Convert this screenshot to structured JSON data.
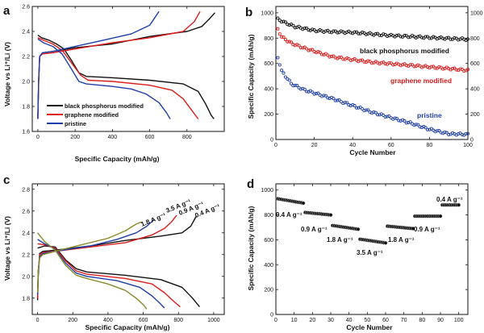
{
  "colors": {
    "black": "#111111",
    "red": "#dd1b1b",
    "blue": "#1f3fa8",
    "olive": "#8a8a2a",
    "axis": "#111111"
  },
  "chart_data": [
    {
      "label": "a",
      "type": "line",
      "xlabel": "Specific Capacity (mAh/g)",
      "ylabel": "Voltage vs Li⁺/Li (V)",
      "xlim": [
        -30,
        1000
      ],
      "ylim": [
        1.6,
        2.6
      ],
      "xticks": [
        "0",
        "200",
        "400",
        "600",
        "800"
      ],
      "xtick_values": [
        0,
        200,
        400,
        600,
        800
      ],
      "yticks": [
        "1.6",
        "1.8",
        "2.0",
        "2.2",
        "2.4",
        "2.6"
      ],
      "ytick_values": [
        1.6,
        1.8,
        2.0,
        2.2,
        2.4,
        2.6
      ],
      "legend": [
        "black phosphorus modified",
        "graphene modified",
        "pristine"
      ],
      "legend_position": "bottom-left",
      "series": [
        {
          "name": "black phosphorus modified",
          "color": "black",
          "discharge": [
            [
              0,
              2.37
            ],
            [
              20,
              2.35
            ],
            [
              60,
              2.33
            ],
            [
              100,
              2.3
            ],
            [
              140,
              2.26
            ],
            [
              180,
              2.17
            ],
            [
              220,
              2.07
            ],
            [
              260,
              2.04
            ],
            [
              400,
              2.03
            ],
            [
              600,
              2.01
            ],
            [
              780,
              1.98
            ],
            [
              860,
              1.92
            ],
            [
              900,
              1.82
            ],
            [
              930,
              1.73
            ],
            [
              945,
              1.7
            ]
          ],
          "charge": [
            [
              0,
              1.7
            ],
            [
              4,
              2.0
            ],
            [
              10,
              2.2
            ],
            [
              25,
              2.23
            ],
            [
              80,
              2.24
            ],
            [
              200,
              2.27
            ],
            [
              400,
              2.3
            ],
            [
              600,
              2.36
            ],
            [
              800,
              2.4
            ],
            [
              880,
              2.44
            ],
            [
              920,
              2.5
            ],
            [
              950,
              2.55
            ]
          ]
        },
        {
          "name": "graphene modified",
          "color": "red",
          "discharge": [
            [
              0,
              2.35
            ],
            [
              30,
              2.33
            ],
            [
              80,
              2.3
            ],
            [
              130,
              2.25
            ],
            [
              180,
              2.15
            ],
            [
              230,
              2.05
            ],
            [
              270,
              2.01
            ],
            [
              400,
              2.0
            ],
            [
              600,
              1.97
            ],
            [
              720,
              1.93
            ],
            [
              780,
              1.86
            ],
            [
              820,
              1.78
            ],
            [
              860,
              1.7
            ]
          ],
          "charge": [
            [
              0,
              1.7
            ],
            [
              4,
              2.0
            ],
            [
              10,
              2.2
            ],
            [
              25,
              2.22
            ],
            [
              80,
              2.23
            ],
            [
              200,
              2.26
            ],
            [
              400,
              2.31
            ],
            [
              600,
              2.35
            ],
            [
              780,
              2.4
            ],
            [
              840,
              2.48
            ],
            [
              870,
              2.56
            ]
          ]
        },
        {
          "name": "pristine",
          "color": "blue",
          "discharge": [
            [
              0,
              2.34
            ],
            [
              30,
              2.31
            ],
            [
              80,
              2.28
            ],
            [
              130,
              2.22
            ],
            [
              180,
              2.1
            ],
            [
              220,
              2.0
            ],
            [
              260,
              1.98
            ],
            [
              400,
              1.96
            ],
            [
              500,
              1.94
            ],
            [
              580,
              1.9
            ],
            [
              650,
              1.83
            ],
            [
              690,
              1.75
            ],
            [
              710,
              1.7
            ]
          ],
          "charge": [
            [
              0,
              1.7
            ],
            [
              4,
              2.0
            ],
            [
              10,
              2.2
            ],
            [
              25,
              2.23
            ],
            [
              80,
              2.24
            ],
            [
              200,
              2.28
            ],
            [
              350,
              2.33
            ],
            [
              500,
              2.38
            ],
            [
              600,
              2.45
            ],
            [
              650,
              2.56
            ]
          ]
        }
      ]
    },
    {
      "label": "b",
      "type": "scatter",
      "xlabel": "Cycle Number",
      "ylabel": "Specific Capacity (mAh/g)",
      "xlim": [
        0,
        100
      ],
      "ylim": [
        0,
        1050
      ],
      "xticks": [
        "0",
        "20",
        "40",
        "60",
        "80",
        "100"
      ],
      "xtick_values": [
        0,
        20,
        40,
        60,
        80,
        100
      ],
      "yticks": [
        "0",
        "200",
        "400",
        "600",
        "800",
        "1000"
      ],
      "ytick_values": [
        0,
        200,
        400,
        600,
        800,
        1000
      ],
      "series": [
        {
          "name": "black phosphorus modified",
          "color": "black",
          "anchors": [
            [
              1,
              950
            ],
            [
              5,
              920
            ],
            [
              10,
              890
            ],
            [
              20,
              860
            ],
            [
              30,
              850
            ],
            [
              40,
              845
            ],
            [
              60,
              820
            ],
            [
              80,
              805
            ],
            [
              100,
              790
            ]
          ]
        },
        {
          "name": "graphene modified",
          "color": "red",
          "anchors": [
            [
              1,
              870
            ],
            [
              3,
              810
            ],
            [
              8,
              760
            ],
            [
              15,
              720
            ],
            [
              30,
              650
            ],
            [
              50,
              610
            ],
            [
              70,
              585
            ],
            [
              90,
              560
            ],
            [
              100,
              545
            ]
          ]
        },
        {
          "name": "pristine",
          "color": "blue",
          "anchors": [
            [
              1,
              650
            ],
            [
              3,
              540
            ],
            [
              8,
              440
            ],
            [
              15,
              390
            ],
            [
              30,
              320
            ],
            [
              50,
              215
            ],
            [
              70,
              130
            ],
            [
              80,
              80
            ],
            [
              90,
              45
            ],
            [
              100,
              40
            ]
          ]
        }
      ],
      "annotations": [
        "black phosphorus modified",
        "graphene modified",
        "pristine"
      ]
    },
    {
      "label": "c",
      "type": "line",
      "xlabel": "Specific Capacity (mAh/g)",
      "ylabel": "Voltage vs Li⁺/Li (V)",
      "xlim": [
        -30,
        1060
      ],
      "ylim": [
        1.65,
        2.85
      ],
      "xticks": [
        "0",
        "200",
        "400",
        "600",
        "800",
        "1000"
      ],
      "xtick_values": [
        0,
        200,
        400,
        600,
        800,
        1000
      ],
      "yticks": [
        "1.8",
        "2.0",
        "2.2",
        "2.4",
        "2.6",
        "2.8"
      ],
      "ytick_values": [
        1.8,
        2.0,
        2.2,
        2.4,
        2.6,
        2.8
      ],
      "rate_labels": [
        "3.5 A g⁻¹",
        "1.8 A g⁻¹",
        "0.9 A g⁻¹",
        "0.4 A g⁻¹"
      ],
      "series": [
        {
          "name": "0.4 A g⁻¹",
          "color": "black",
          "discharge": [
            [
              0,
              2.26
            ],
            [
              40,
              2.28
            ],
            [
              100,
              2.27
            ],
            [
              160,
              2.15
            ],
            [
              220,
              2.07
            ],
            [
              280,
              2.04
            ],
            [
              500,
              2.01
            ],
            [
              700,
              1.97
            ],
            [
              820,
              1.9
            ],
            [
              880,
              1.8
            ],
            [
              920,
              1.72
            ]
          ],
          "charge": [
            [
              0,
              1.78
            ],
            [
              4,
              2.0
            ],
            [
              12,
              2.21
            ],
            [
              30,
              2.23
            ],
            [
              100,
              2.24
            ],
            [
              300,
              2.28
            ],
            [
              500,
              2.33
            ],
            [
              700,
              2.37
            ],
            [
              820,
              2.4
            ],
            [
              870,
              2.46
            ],
            [
              900,
              2.55
            ]
          ]
        },
        {
          "name": "0.9 A g⁻¹",
          "color": "red",
          "discharge": [
            [
              0,
              2.3
            ],
            [
              40,
              2.29
            ],
            [
              100,
              2.26
            ],
            [
              160,
              2.14
            ],
            [
              220,
              2.05
            ],
            [
              280,
              2.02
            ],
            [
              500,
              1.98
            ],
            [
              650,
              1.93
            ],
            [
              720,
              1.85
            ],
            [
              780,
              1.76
            ],
            [
              810,
              1.72
            ]
          ],
          "charge": [
            [
              0,
              1.8
            ],
            [
              4,
              2.05
            ],
            [
              12,
              2.2
            ],
            [
              30,
              2.22
            ],
            [
              100,
              2.23
            ],
            [
              300,
              2.27
            ],
            [
              500,
              2.31
            ],
            [
              650,
              2.38
            ],
            [
              720,
              2.44
            ],
            [
              760,
              2.5
            ],
            [
              790,
              2.56
            ]
          ]
        },
        {
          "name": "1.8 A g⁻¹",
          "color": "blue",
          "discharge": [
            [
              0,
              2.34
            ],
            [
              40,
              2.3
            ],
            [
              100,
              2.25
            ],
            [
              160,
              2.12
            ],
            [
              220,
              2.03
            ],
            [
              280,
              2.0
            ],
            [
              450,
              1.96
            ],
            [
              580,
              1.9
            ],
            [
              650,
              1.82
            ],
            [
              690,
              1.76
            ],
            [
              720,
              1.71
            ]
          ],
          "charge": [
            [
              0,
              1.83
            ],
            [
              4,
              2.05
            ],
            [
              12,
              2.18
            ],
            [
              30,
              2.21
            ],
            [
              100,
              2.23
            ],
            [
              300,
              2.28
            ],
            [
              450,
              2.34
            ],
            [
              560,
              2.4
            ],
            [
              620,
              2.46
            ],
            [
              660,
              2.52
            ]
          ]
        },
        {
          "name": "3.5 A g⁻¹",
          "color": "olive",
          "discharge": [
            [
              0,
              2.4
            ],
            [
              40,
              2.32
            ],
            [
              100,
              2.24
            ],
            [
              160,
              2.1
            ],
            [
              220,
              2.01
            ],
            [
              280,
              1.98
            ],
            [
              400,
              1.93
            ],
            [
              500,
              1.87
            ],
            [
              560,
              1.8
            ],
            [
              600,
              1.74
            ],
            [
              620,
              1.7
            ]
          ],
          "charge": [
            [
              0,
              1.85
            ],
            [
              4,
              2.05
            ],
            [
              12,
              2.17
            ],
            [
              30,
              2.2
            ],
            [
              100,
              2.23
            ],
            [
              250,
              2.29
            ],
            [
              400,
              2.35
            ],
            [
              500,
              2.42
            ],
            [
              560,
              2.48
            ],
            [
              590,
              2.5
            ]
          ]
        }
      ]
    },
    {
      "label": "d",
      "type": "scatter",
      "xlabel": "Cycle Number",
      "ylabel": "Specific Capacity (mAh/g)",
      "xlim": [
        0,
        105
      ],
      "ylim": [
        0,
        1050
      ],
      "xticks": [
        "0",
        "10",
        "20",
        "30",
        "40",
        "50",
        "60",
        "70",
        "80",
        "90",
        "100"
      ],
      "xtick_values": [
        0,
        10,
        20,
        30,
        40,
        50,
        60,
        70,
        80,
        90,
        100
      ],
      "yticks": [
        "0",
        "200",
        "400",
        "600",
        "800",
        "1000"
      ],
      "ytick_values": [
        0,
        200,
        400,
        600,
        800,
        1000
      ],
      "segments": [
        {
          "rate": "0.4 A g⁻¹",
          "cycles": [
            1,
            15
          ],
          "capacity": [
            930,
            895
          ]
        },
        {
          "rate": "0.9 A g⁻¹",
          "cycles": [
            16,
            30
          ],
          "capacity": [
            820,
            800
          ]
        },
        {
          "rate": "1.8 A g⁻¹",
          "cycles": [
            31,
            45
          ],
          "capacity": [
            715,
            685
          ]
        },
        {
          "rate": "3.5 A g⁻¹",
          "cycles": [
            46,
            60
          ],
          "capacity": [
            605,
            575
          ]
        },
        {
          "rate": "1.8 A g⁻¹",
          "cycles": [
            61,
            75
          ],
          "capacity": [
            710,
            690
          ]
        },
        {
          "rate": "0.9 A g⁻¹",
          "cycles": [
            76,
            90
          ],
          "capacity": [
            790,
            790
          ]
        },
        {
          "rate": "0.4 A g⁻¹",
          "cycles": [
            91,
            100
          ],
          "capacity": [
            880,
            880
          ]
        }
      ]
    }
  ]
}
